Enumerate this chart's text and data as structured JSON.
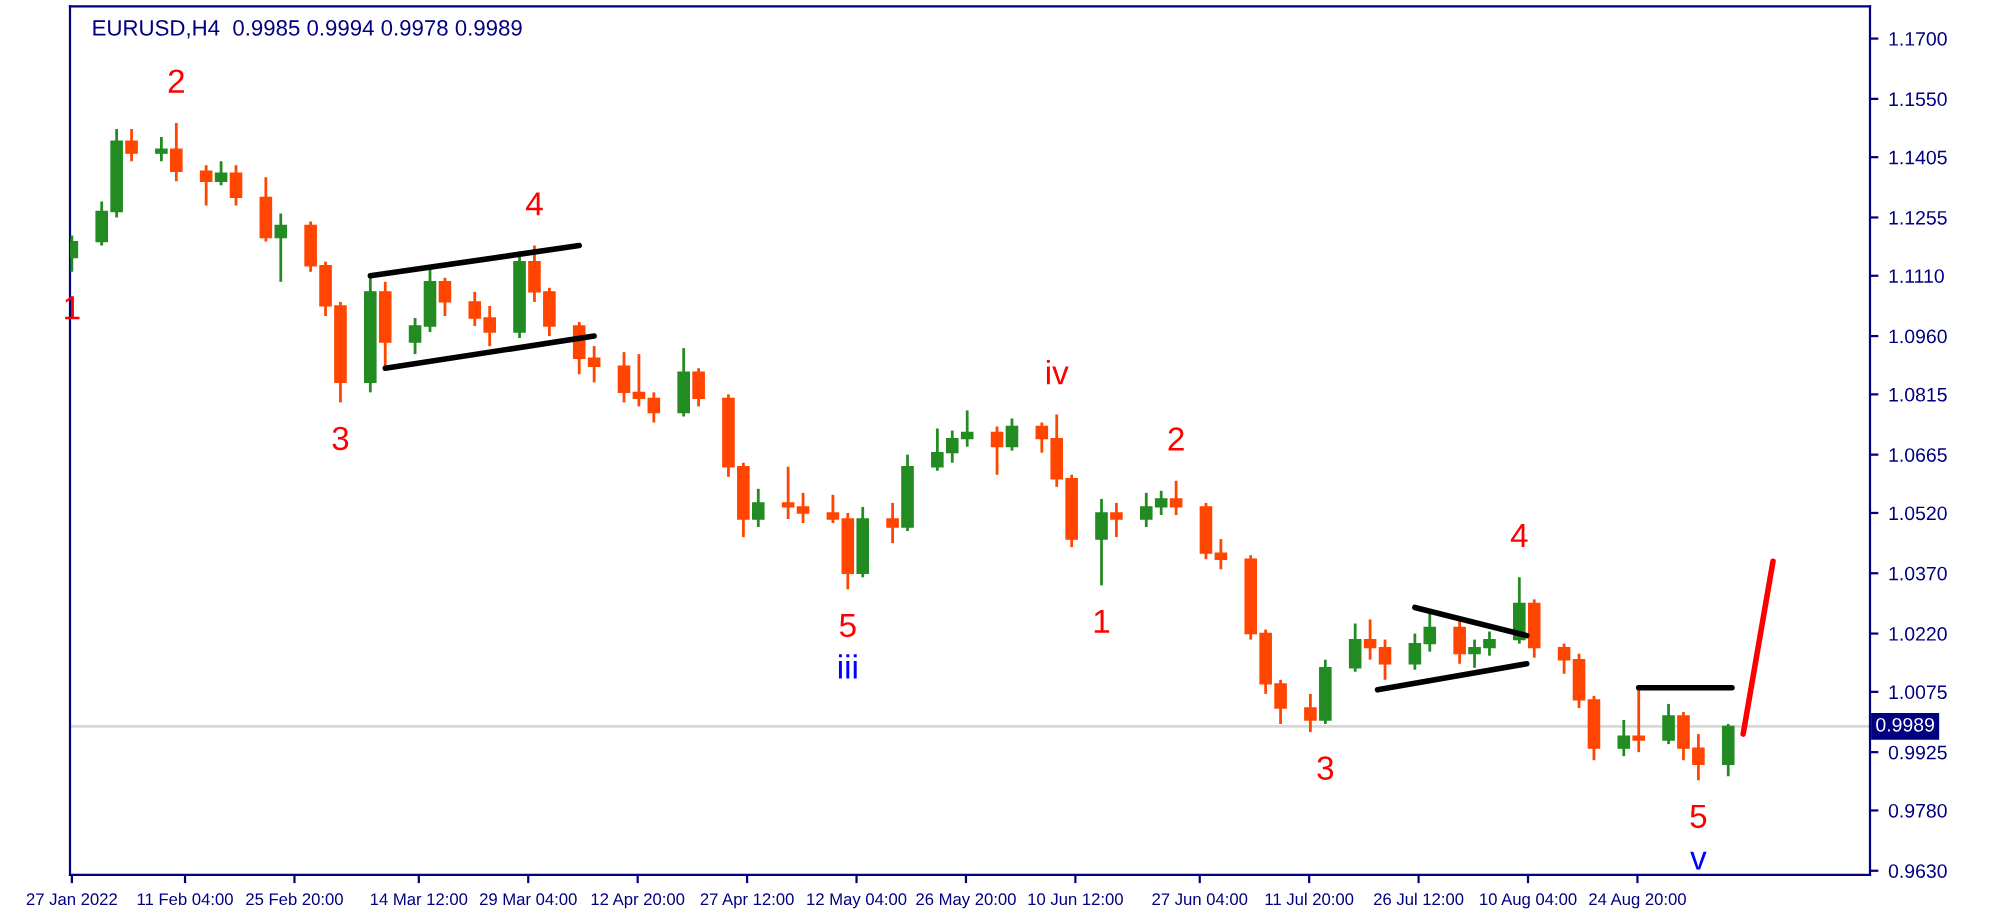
{
  "chart_data": {
    "type": "candlestick",
    "title": "EURUSD,H4  0.9985 0.9994 0.9978 0.9989",
    "x": [
      "2022-01-27",
      "2022-01-31",
      "2022-02-02",
      "2022-02-04",
      "2022-02-08",
      "2022-02-10",
      "2022-02-14",
      "2022-02-16",
      "2022-02-18",
      "2022-02-22",
      "2022-02-24",
      "2022-02-28",
      "2022-03-02",
      "2022-03-04",
      "2022-03-08",
      "2022-03-10",
      "2022-03-14",
      "2022-03-16",
      "2022-03-18",
      "2022-03-22",
      "2022-03-24",
      "2022-03-28",
      "2022-03-30",
      "2022-04-01",
      "2022-04-05",
      "2022-04-07",
      "2022-04-11",
      "2022-04-13",
      "2022-04-15",
      "2022-04-19",
      "2022-04-21",
      "2022-04-25",
      "2022-04-27",
      "2022-04-29",
      "2022-05-03",
      "2022-05-05",
      "2022-05-09",
      "2022-05-11",
      "2022-05-13",
      "2022-05-17",
      "2022-05-19",
      "2022-05-23",
      "2022-05-25",
      "2022-05-27",
      "2022-05-31",
      "2022-06-02",
      "2022-06-06",
      "2022-06-08",
      "2022-06-10",
      "2022-06-14",
      "2022-06-16",
      "2022-06-20",
      "2022-06-22",
      "2022-06-24",
      "2022-06-28",
      "2022-06-30",
      "2022-07-04",
      "2022-07-06",
      "2022-07-08",
      "2022-07-12",
      "2022-07-14",
      "2022-07-18",
      "2022-07-20",
      "2022-07-22",
      "2022-07-26",
      "2022-07-28",
      "2022-08-01",
      "2022-08-03",
      "2022-08-05",
      "2022-08-09",
      "2022-08-11",
      "2022-08-15",
      "2022-08-17",
      "2022-08-19",
      "2022-08-23",
      "2022-08-25",
      "2022-08-29",
      "2022-08-31",
      "2022-09-02",
      "2022-09-06"
    ],
    "ohlc": [
      [
        1.1155,
        1.121,
        1.112,
        1.1195
      ],
      [
        1.1195,
        1.1295,
        1.1185,
        1.127
      ],
      [
        1.127,
        1.1475,
        1.1255,
        1.1445
      ],
      [
        1.1445,
        1.1475,
        1.1395,
        1.1415
      ],
      [
        1.1415,
        1.1455,
        1.1395,
        1.1425
      ],
      [
        1.1425,
        1.149,
        1.1345,
        1.137
      ],
      [
        1.137,
        1.1385,
        1.1285,
        1.1345
      ],
      [
        1.1345,
        1.1395,
        1.1335,
        1.1365
      ],
      [
        1.1365,
        1.1385,
        1.1285,
        1.1305
      ],
      [
        1.1305,
        1.1355,
        1.1195,
        1.1205
      ],
      [
        1.1205,
        1.1265,
        1.1095,
        1.1235
      ],
      [
        1.1235,
        1.1245,
        1.112,
        1.1135
      ],
      [
        1.1135,
        1.1145,
        1.101,
        1.1035
      ],
      [
        1.1035,
        1.1045,
        1.0795,
        1.0845
      ],
      [
        1.0845,
        1.1105,
        1.082,
        1.107
      ],
      [
        1.107,
        1.1095,
        1.0885,
        1.0945
      ],
      [
        1.0945,
        1.1005,
        1.0915,
        1.0985
      ],
      [
        1.0985,
        1.1135,
        1.097,
        1.1095
      ],
      [
        1.1095,
        1.1105,
        1.101,
        1.1045
      ],
      [
        1.1045,
        1.107,
        1.0985,
        1.1005
      ],
      [
        1.1005,
        1.1035,
        1.0935,
        1.097
      ],
      [
        1.097,
        1.117,
        1.0955,
        1.1145
      ],
      [
        1.1145,
        1.1185,
        1.1045,
        1.107
      ],
      [
        1.107,
        1.108,
        1.096,
        1.0985
      ],
      [
        1.0985,
        1.0995,
        1.0865,
        1.0905
      ],
      [
        1.0905,
        1.0935,
        1.0845,
        1.0885
      ],
      [
        1.0885,
        1.092,
        1.0795,
        1.082
      ],
      [
        1.082,
        1.0915,
        1.0785,
        1.0805
      ],
      [
        1.0805,
        1.082,
        1.0745,
        1.077
      ],
      [
        1.077,
        1.093,
        1.076,
        1.087
      ],
      [
        1.087,
        1.088,
        1.0785,
        1.0805
      ],
      [
        1.0805,
        1.0815,
        1.061,
        1.0635
      ],
      [
        1.0635,
        1.0645,
        1.046,
        1.0505
      ],
      [
        1.0505,
        1.058,
        1.0485,
        1.0545
      ],
      [
        1.0545,
        1.0635,
        1.0505,
        1.0535
      ],
      [
        1.0535,
        1.057,
        1.0495,
        1.052
      ],
      [
        1.052,
        1.0565,
        1.0495,
        1.0505
      ],
      [
        1.0505,
        1.052,
        1.033,
        1.037
      ],
      [
        1.037,
        1.0535,
        1.036,
        1.0505
      ],
      [
        1.0505,
        1.0545,
        1.0445,
        1.0485
      ],
      [
        1.0485,
        1.0665,
        1.0475,
        1.0635
      ],
      [
        1.0635,
        1.073,
        1.0625,
        1.067
      ],
      [
        1.067,
        1.0725,
        1.0645,
        1.0705
      ],
      [
        1.0705,
        1.0775,
        1.0685,
        1.072
      ],
      [
        1.072,
        1.0735,
        1.0615,
        1.0685
      ],
      [
        1.0685,
        1.0755,
        1.0675,
        1.0735
      ],
      [
        1.0735,
        1.0745,
        1.067,
        1.0705
      ],
      [
        1.0705,
        1.0765,
        1.0585,
        1.0605
      ],
      [
        1.0605,
        1.0615,
        1.0435,
        1.0455
      ],
      [
        1.0455,
        1.0555,
        1.034,
        1.052
      ],
      [
        1.052,
        1.0545,
        1.046,
        1.0505
      ],
      [
        1.0505,
        1.057,
        1.0485,
        1.0535
      ],
      [
        1.0535,
        1.0575,
        1.0515,
        1.0555
      ],
      [
        1.0555,
        1.06,
        1.0515,
        1.0535
      ],
      [
        1.0535,
        1.0545,
        1.0405,
        1.042
      ],
      [
        1.042,
        1.0455,
        1.038,
        1.0405
      ],
      [
        1.0405,
        1.0415,
        1.0205,
        1.022
      ],
      [
        1.022,
        1.023,
        1.007,
        1.0095
      ],
      [
        1.0095,
        1.0105,
        0.9995,
        1.0035
      ],
      [
        1.0035,
        1.007,
        0.9975,
        1.0005
      ],
      [
        1.0005,
        1.0155,
        0.9995,
        1.0135
      ],
      [
        1.0135,
        1.0245,
        1.0125,
        1.0205
      ],
      [
        1.0205,
        1.0255,
        1.0155,
        1.0185
      ],
      [
        1.0185,
        1.0205,
        1.0105,
        1.0145
      ],
      [
        1.0145,
        1.022,
        1.013,
        1.0195
      ],
      [
        1.0195,
        1.028,
        1.0175,
        1.0235
      ],
      [
        1.0235,
        1.0255,
        1.0145,
        1.017
      ],
      [
        1.017,
        1.0205,
        1.0135,
        1.0185
      ],
      [
        1.0185,
        1.0225,
        1.0165,
        1.0205
      ],
      [
        1.0205,
        1.036,
        1.0195,
        1.0295
      ],
      [
        1.0295,
        1.0305,
        1.016,
        1.0185
      ],
      [
        1.0185,
        1.0195,
        1.012,
        1.0155
      ],
      [
        1.0155,
        1.017,
        1.0035,
        1.0055
      ],
      [
        1.0055,
        1.0065,
        0.9905,
        0.9935
      ],
      [
        0.9935,
        1.0005,
        0.9915,
        0.9965
      ],
      [
        0.9965,
        1.008,
        0.9925,
        0.9955
      ],
      [
        0.9955,
        1.0045,
        0.9945,
        1.0015
      ],
      [
        1.0015,
        1.0025,
        0.9905,
        0.9935
      ],
      [
        0.9935,
        0.997,
        0.9855,
        0.9895
      ],
      [
        0.9895,
        0.9995,
        0.9865,
        0.9989
      ]
    ],
    "colors": [
      "#228b22",
      "#228b22",
      "#228b22",
      "#ff4500",
      "#228b22",
      "#ff4500",
      "#ff4500",
      "#228b22",
      "#ff4500",
      "#ff4500",
      "#228b22",
      "#ff4500",
      "#ff4500",
      "#ff4500",
      "#228b22",
      "#ff4500",
      "#228b22",
      "#228b22",
      "#ff4500",
      "#ff4500",
      "#ff4500",
      "#228b22",
      "#ff4500",
      "#ff4500",
      "#ff4500",
      "#ff4500",
      "#ff4500",
      "#ff4500",
      "#ff4500",
      "#228b22",
      "#ff4500",
      "#ff4500",
      "#ff4500",
      "#228b22",
      "#ff4500",
      "#ff4500",
      "#ff4500",
      "#ff4500",
      "#228b22",
      "#ff4500",
      "#228b22",
      "#228b22",
      "#228b22",
      "#228b22",
      "#ff4500",
      "#228b22",
      "#ff4500",
      "#ff4500",
      "#ff4500",
      "#228b22",
      "#ff4500",
      "#228b22",
      "#228b22",
      "#ff4500",
      "#ff4500",
      "#ff4500",
      "#ff4500",
      "#ff4500",
      "#ff4500",
      "#ff4500",
      "#228b22",
      "#228b22",
      "#ff4500",
      "#ff4500",
      "#228b22",
      "#228b22",
      "#ff4500",
      "#228b22",
      "#228b22",
      "#228b22",
      "#ff4500",
      "#ff4500",
      "#ff4500",
      "#ff4500",
      "#228b22",
      "#ff4500",
      "#228b22",
      "#ff4500",
      "#ff4500",
      "#228b22"
    ],
    "series": [
      {
        "type": "line",
        "color": "#000000",
        "x": [
          "2022-03-08",
          "2022-04-05"
        ],
        "values": [
          1.111,
          1.1185
        ]
      },
      {
        "type": "line",
        "color": "#000000",
        "x": [
          "2022-03-10",
          "2022-04-07"
        ],
        "values": [
          1.088,
          1.096
        ]
      },
      {
        "type": "line",
        "color": "#000000",
        "x": [
          "2022-07-26",
          "2022-08-10"
        ],
        "values": [
          1.0285,
          1.0215
        ]
      },
      {
        "type": "line",
        "color": "#000000",
        "x": [
          "2022-07-21",
          "2022-08-10"
        ],
        "values": [
          1.008,
          1.0145
        ]
      },
      {
        "type": "line",
        "color": "#000000",
        "x": [
          "2022-08-25",
          "2022-09-06T12:00"
        ],
        "values": [
          1.0085,
          1.0085
        ]
      },
      {
        "type": "line",
        "color": "#ff0000",
        "x": [
          "2022-09-08",
          "2022-09-12"
        ],
        "values": [
          0.997,
          1.04
        ]
      }
    ],
    "annotations": [
      {
        "text": "1",
        "x": "2022-01-27",
        "y": 1.112
      },
      {
        "text": "2",
        "x": "2022-02-10",
        "y": 1.149
      },
      {
        "text": "3",
        "x": "2022-03-04",
        "y": 1.0795
      },
      {
        "text": "4",
        "x": "2022-03-30",
        "y": 1.1185
      },
      {
        "text": "5",
        "x": "2022-05-11",
        "y": 1.033
      },
      {
        "text": "iii",
        "x": "2022-05-11",
        "y": 1.033
      },
      {
        "text": "iv",
        "x": "2022-06-08",
        "y": 1.0765
      },
      {
        "text": "1",
        "x": "2022-06-14",
        "y": 1.034
      },
      {
        "text": "2",
        "x": "2022-06-24",
        "y": 1.06
      },
      {
        "text": "3",
        "x": "2022-07-14",
        "y": 0.9975
      },
      {
        "text": "4",
        "x": "2022-08-09",
        "y": 1.036
      },
      {
        "text": "5",
        "x": "2022-09-02",
        "y": 0.9855
      },
      {
        "text": "v",
        "x": "2022-09-02",
        "y": 0.9855
      }
    ],
    "ref_lines": [
      {
        "axis": "y",
        "value": 0.9989,
        "label": "0.9989",
        "color": "#d8d8d8"
      }
    ],
    "xlim": [
      "2022-01-26T18:00",
      "2022-09-25"
    ],
    "xticks": [
      {
        "value": "2022-01-27",
        "label": "27 Jan 2022"
      },
      {
        "value": "2022-02-11T04:00",
        "label": "11 Feb 04:00"
      },
      {
        "value": "2022-02-25T20:00",
        "label": "25 Feb 20:00"
      },
      {
        "value": "2022-03-14T12:00",
        "label": "14 Mar 12:00"
      },
      {
        "value": "2022-03-29T04:00",
        "label": "29 Mar 04:00"
      },
      {
        "value": "2022-04-12T20:00",
        "label": "12 Apr 20:00"
      },
      {
        "value": "2022-04-27T12:00",
        "label": "27 Apr 12:00"
      },
      {
        "value": "2022-05-12T04:00",
        "label": "12 May 04:00"
      },
      {
        "value": "2022-05-26T20:00",
        "label": "26 May 20:00"
      },
      {
        "value": "2022-06-10T12:00",
        "label": "10 Jun 12:00"
      },
      {
        "value": "2022-06-27T04:00",
        "label": "27 Jun 04:00"
      },
      {
        "value": "2022-07-11T20:00",
        "label": "11 Jul 20:00"
      },
      {
        "value": "2022-07-26T12:00",
        "label": "26 Jul 12:00"
      },
      {
        "value": "2022-08-10T04:00",
        "label": "10 Aug 04:00"
      },
      {
        "value": "2022-08-24T20:00",
        "label": "24 Aug 20:00"
      }
    ],
    "ylim": [
      0.962,
      1.178
    ],
    "yticks": [
      {
        "value": 1.17,
        "label": "1.1700"
      },
      {
        "value": 1.155,
        "label": "1.1550"
      },
      {
        "value": 1.1405,
        "label": "1.1405"
      },
      {
        "value": 1.1255,
        "label": "1.1255"
      },
      {
        "value": 1.111,
        "label": "1.1110"
      },
      {
        "value": 1.096,
        "label": "1.0960"
      },
      {
        "value": 1.0815,
        "label": "1.0815"
      },
      {
        "value": 1.0665,
        "label": "1.0665"
      },
      {
        "value": 1.052,
        "label": "1.0520"
      },
      {
        "value": 1.037,
        "label": "1.0370"
      },
      {
        "value": 1.022,
        "label": "1.0220"
      },
      {
        "value": 1.0075,
        "label": "1.0075"
      },
      {
        "value": 0.9925,
        "label": "0.9925"
      },
      {
        "value": 0.978,
        "label": "0.9780"
      },
      {
        "value": 0.963,
        "label": "0.9630"
      }
    ],
    "grid": false
  }
}
